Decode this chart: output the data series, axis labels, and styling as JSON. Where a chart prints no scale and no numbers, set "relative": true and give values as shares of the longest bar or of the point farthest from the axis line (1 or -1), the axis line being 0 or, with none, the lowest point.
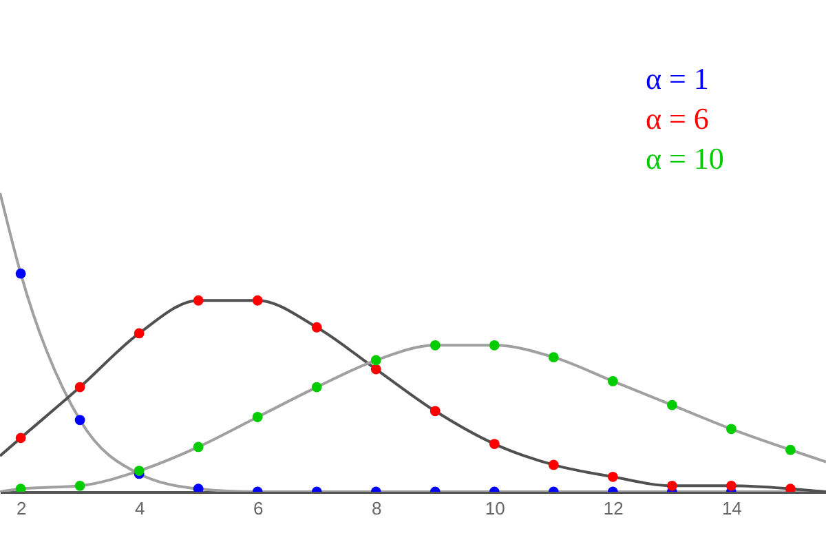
{
  "chart_data": {
    "type": "scatter",
    "relative": true,
    "marker": "circle",
    "legend": "top right",
    "grid": false,
    "tick_labels": "x",
    "x": [
      2,
      3,
      4,
      5,
      6,
      7,
      8,
      9,
      10,
      11,
      12,
      13,
      14,
      15
    ],
    "xlim": [
      1.65,
      15.6
    ],
    "xticks": [
      2,
      4,
      6,
      8,
      10,
      12,
      14
    ],
    "series": [
      {
        "type": "line",
        "marker": "none",
        "color": "#a0a0a0",
        "x": [
          1.65,
          2,
          3,
          4,
          5,
          6,
          7,
          8,
          9,
          10,
          11,
          12,
          13,
          14,
          15,
          15.6
        ],
        "values": [
          1,
          0.73,
          0.24,
          0.06,
          0.01,
          0,
          0,
          0,
          0,
          0,
          0,
          0,
          0,
          0,
          0,
          0
        ]
      },
      {
        "type": "line",
        "marker": "none",
        "color": "#505050",
        "x": [
          1.65,
          2,
          3,
          4,
          5,
          6,
          7,
          8,
          9,
          10,
          11,
          12,
          13,
          14,
          15,
          15.6
        ],
        "values": [
          0.12,
          0.18,
          0.35,
          0.53,
          0.64,
          0.64,
          0.55,
          0.41,
          0.27,
          0.16,
          0.09,
          0.05,
          0.02,
          0.02,
          0.01,
          0
        ]
      },
      {
        "type": "line",
        "marker": "none",
        "color": "#a0a0a0",
        "x": [
          1.65,
          2,
          3,
          4,
          5,
          6,
          7,
          8,
          9,
          10,
          11,
          12,
          13,
          14,
          15,
          15.6
        ],
        "values": [
          0,
          0.01,
          0.02,
          0.07,
          0.15,
          0.25,
          0.35,
          0.44,
          0.49,
          0.49,
          0.45,
          0.37,
          0.29,
          0.21,
          0.14,
          0.1
        ]
      },
      {
        "name": "α = 1",
        "color": "#0000ff",
        "values": [
          0.73,
          0.24,
          0.06,
          0.01,
          0,
          0,
          0,
          0,
          0,
          0,
          0,
          0,
          0,
          null
        ]
      },
      {
        "name": "α = 6",
        "color": "#ff0000",
        "values": [
          0.18,
          0.35,
          0.53,
          0.64,
          0.64,
          0.55,
          0.41,
          0.27,
          0.16,
          0.09,
          0.05,
          0.02,
          0.02,
          0.01
        ]
      },
      {
        "name": "α = 10",
        "color": "#00cc00",
        "values": [
          0.01,
          0.02,
          0.07,
          0.15,
          0.25,
          0.35,
          0.44,
          0.49,
          0.49,
          0.45,
          0.37,
          0.29,
          0.21,
          0.14
        ]
      }
    ]
  }
}
